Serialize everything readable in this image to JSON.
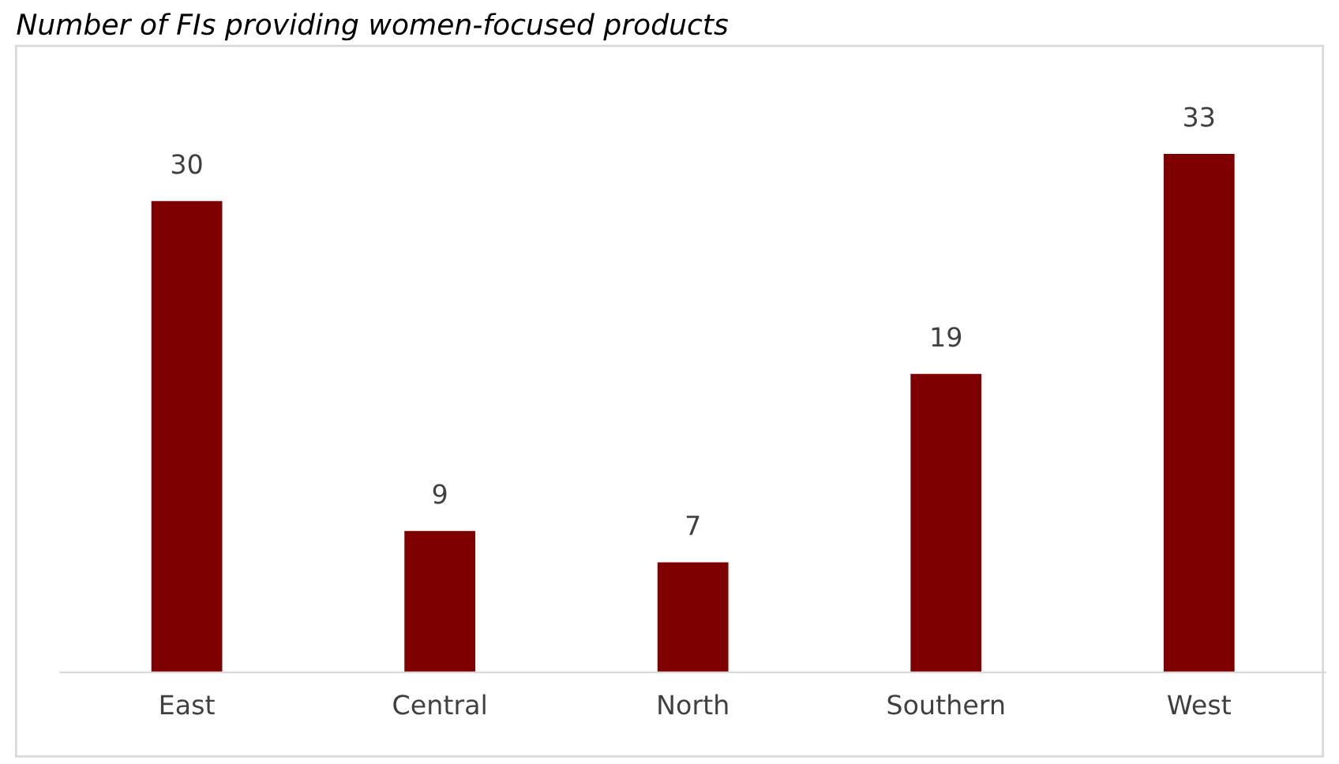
{
  "chart_data": {
    "type": "bar",
    "title": "Number of FIs providing women-focused products",
    "categories": [
      "East",
      "Central",
      "North",
      "Southern",
      "West"
    ],
    "values": [
      30,
      9,
      7,
      19,
      33
    ],
    "color": "#7f0000",
    "data_labels": true,
    "grid": false,
    "legend": false
  }
}
